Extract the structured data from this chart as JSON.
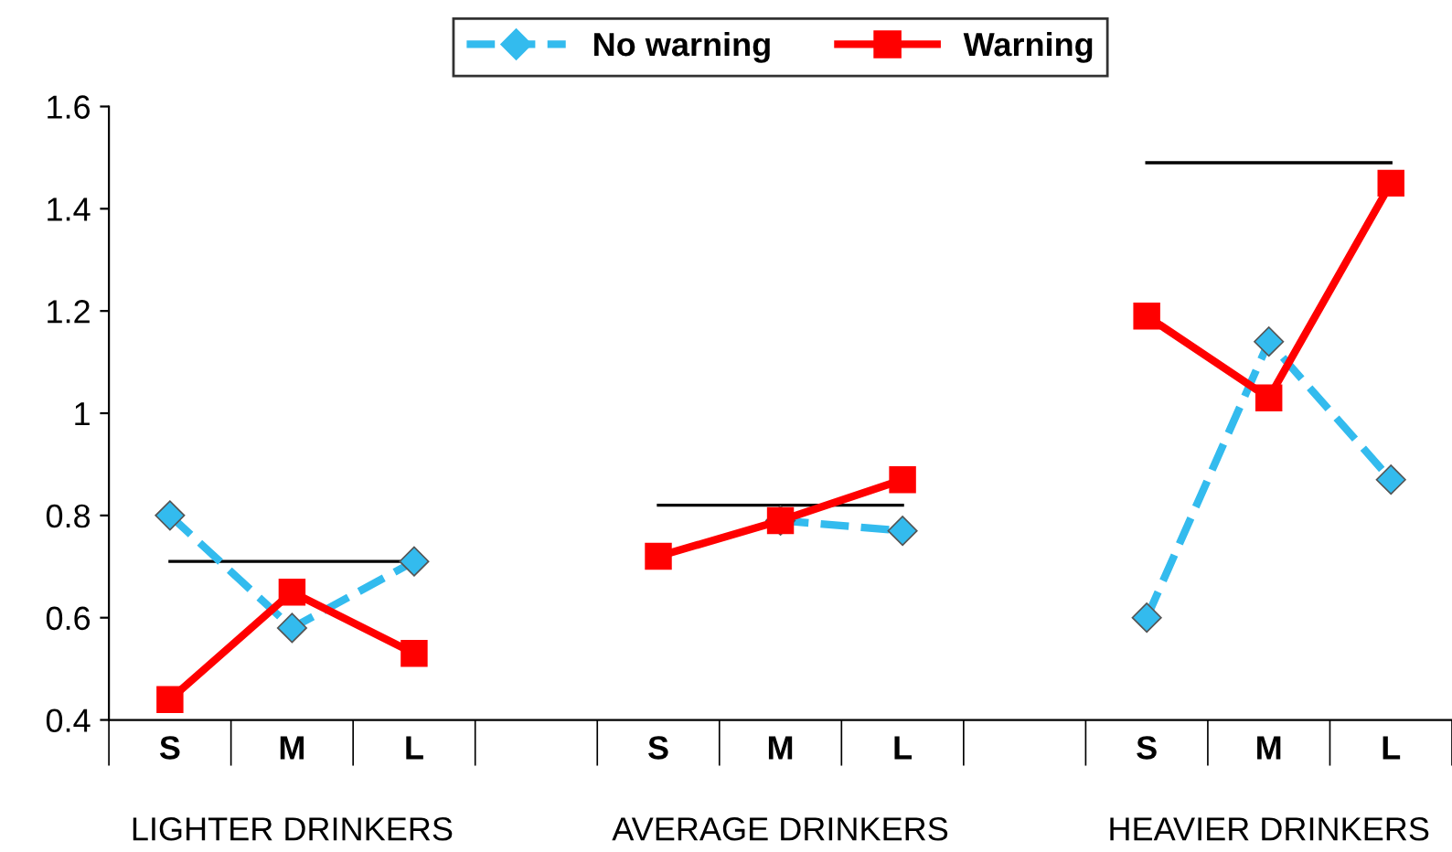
{
  "chart_data": {
    "type": "line",
    "categories": [
      "S",
      "M",
      "L",
      null,
      "S",
      "M",
      "L",
      null,
      "S",
      "M",
      "L"
    ],
    "series": [
      {
        "name": "No warning",
        "color": "#33bbee",
        "marker": "diamond",
        "line_style": "dashed",
        "values": [
          0.8,
          0.58,
          0.71,
          null,
          null,
          0.79,
          0.77,
          null,
          0.6,
          1.14,
          0.87
        ]
      },
      {
        "name": "Warning",
        "color": "#ff0000",
        "marker": "square",
        "line_style": "solid",
        "values": [
          0.44,
          0.65,
          0.53,
          null,
          0.72,
          0.79,
          0.87,
          null,
          1.19,
          1.03,
          1.45
        ]
      },
      {
        "color": "#000000",
        "marker": "none",
        "line_style": "solid",
        "values": [
          0.71,
          0.71,
          0.71,
          null,
          null,
          null,
          null,
          null,
          null,
          null,
          null
        ]
      },
      {
        "color": "#000000",
        "marker": "none",
        "line_style": "solid",
        "values": [
          null,
          null,
          null,
          null,
          0.82,
          0.82,
          0.82,
          null,
          null,
          null,
          null
        ]
      },
      {
        "color": "#000000",
        "marker": "none",
        "line_style": "solid",
        "values": [
          null,
          null,
          null,
          null,
          null,
          null,
          null,
          null,
          1.49,
          1.49,
          1.49
        ]
      }
    ],
    "annotations": [
      "LIGHTER DRINKERS",
      "AVERAGE DRINKERS",
      "HEAVIER DRINKERS"
    ],
    "ylim": [
      0.4,
      1.6
    ],
    "yticks": [
      0.4,
      0.6,
      0.8,
      1,
      1.2,
      1.4,
      1.6
    ],
    "grid": false,
    "legend": "top"
  }
}
